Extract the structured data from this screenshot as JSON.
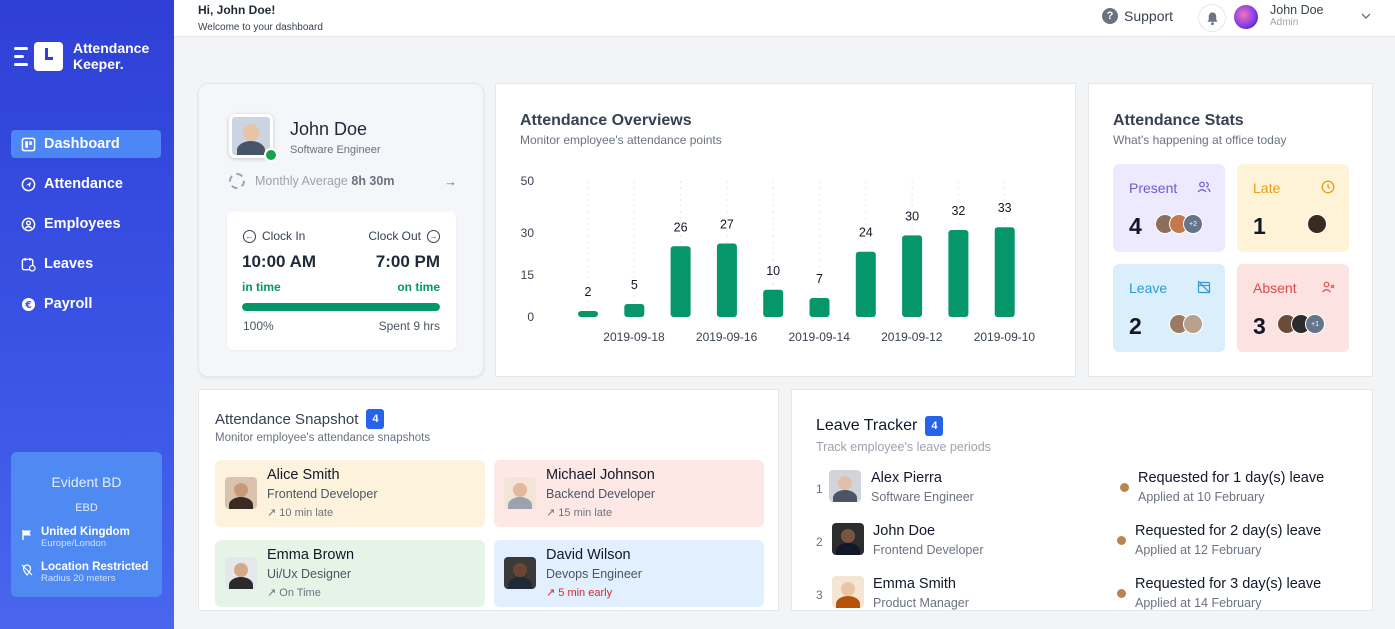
{
  "app": {
    "name_line1": "Attendance",
    "name_line2": "Keeper."
  },
  "nav": [
    {
      "label": "Dashboard",
      "active": true
    },
    {
      "label": "Attendance",
      "active": false
    },
    {
      "label": "Employees",
      "active": false
    },
    {
      "label": "Leaves",
      "active": false
    },
    {
      "label": "Payroll",
      "active": false
    }
  ],
  "org": {
    "name": "Evident BD",
    "code": "EBD",
    "country": "United Kingdom",
    "timezone": "Europe/London",
    "restriction": "Location Restricted",
    "radius": "Radius 20 meters"
  },
  "header": {
    "greeting": "Hi, John Doe!",
    "subtitle": "Welcome to your dashboard",
    "support": "Support",
    "user_name": "John Doe",
    "user_role": "Admin"
  },
  "profile": {
    "name": "John Doe",
    "role": "Software Engineer",
    "monthly_label": "Monthly Average",
    "monthly_value": "8h 30m",
    "clock_in_label": "Clock In",
    "clock_out_label": "Clock Out",
    "clock_in_time": "10:00 AM",
    "clock_out_time": "7:00 PM",
    "clock_in_status": "in time",
    "clock_out_status": "on time",
    "progress_percent": 100,
    "progress_label": "100%",
    "spent_label": "Spent 9 hrs"
  },
  "overview": {
    "title": "Attendance Overviews",
    "subtitle": "Monitor employee's attendance points"
  },
  "chart_data": {
    "type": "bar",
    "title": "Attendance Overviews",
    "values": [
      2,
      5,
      26,
      27,
      10,
      7,
      24,
      30,
      32,
      33
    ],
    "x_ticks": [
      "2019-09-18",
      "2019-09-16",
      "2019-09-14",
      "2019-09-12",
      "2019-09-10"
    ],
    "y_ticks": [
      0,
      15,
      30,
      50
    ],
    "ylim": [
      0,
      50
    ],
    "color": "#059669"
  },
  "stats": {
    "title": "Attendance Stats",
    "subtitle": "What's happening at office today",
    "present": {
      "label": "Present",
      "count": "4",
      "more": "+2"
    },
    "late": {
      "label": "Late",
      "count": "1"
    },
    "leave": {
      "label": "Leave",
      "count": "2"
    },
    "absent": {
      "label": "Absent",
      "count": "3",
      "more": "+1"
    }
  },
  "snapshot": {
    "title": "Attendance Snapshot",
    "count": "4",
    "subtitle": "Monitor employee's attendance snapshots",
    "items": [
      {
        "name": "Alice Smith",
        "role": "Frontend Developer",
        "time": "↗ 10 min late"
      },
      {
        "name": "Michael Johnson",
        "role": "Backend Developer",
        "time": "↗ 15 min late"
      },
      {
        "name": "Emma Brown",
        "role": "Ui/Ux Designer",
        "time": "↗ On Time"
      },
      {
        "name": "David Wilson",
        "role": "Devops Engineer",
        "time": "↗ 5 min early"
      }
    ]
  },
  "tracker": {
    "title": "Leave Tracker",
    "count": "4",
    "subtitle": "Track employee's leave periods",
    "items": [
      {
        "idx": "1",
        "name": "Alex Pierra",
        "role": "Software Engineer",
        "request": "Requested for 1 day(s) leave",
        "applied": "Applied at 10 February"
      },
      {
        "idx": "2",
        "name": "John Doe",
        "role": "Frontend Developer",
        "request": "Requested for 2 day(s) leave",
        "applied": "Applied at 12 February"
      },
      {
        "idx": "3",
        "name": "Emma Smith",
        "role": "Product Manager",
        "request": "Requested for 3 day(s) leave",
        "applied": "Applied at 14 February"
      }
    ]
  },
  "colors": {
    "accent": "#2f3fd6",
    "green": "#059669",
    "badge": "#2563eb"
  }
}
